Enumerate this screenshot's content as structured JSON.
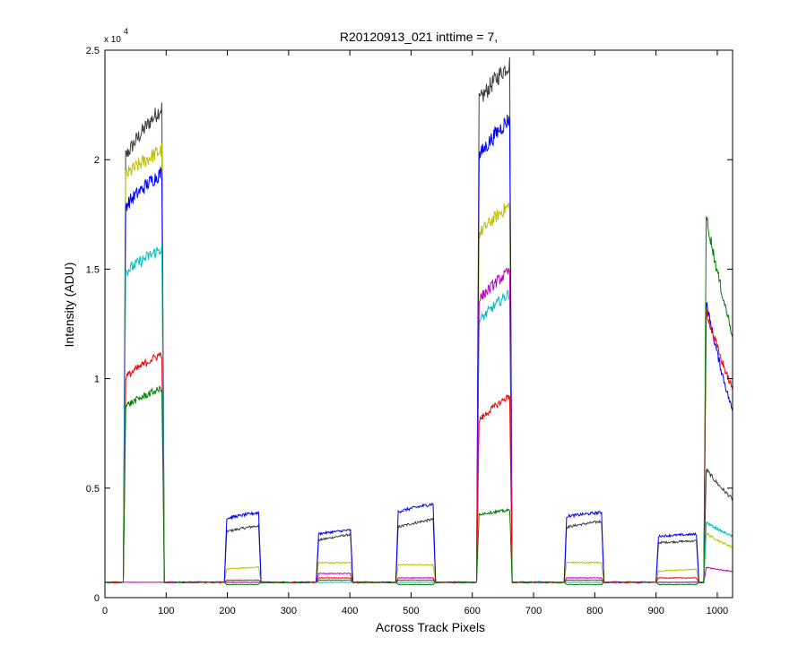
{
  "chart_data": {
    "type": "line",
    "title": "R20120913_021 inttime = 7,",
    "xlabel": "Across Track Pixels",
    "ylabel": "Intensity (ADU)",
    "y_exponent_label": "x 10",
    "y_exponent": "4",
    "xlim": [
      0,
      1025
    ],
    "ylim": [
      0,
      25000
    ],
    "x_ticks": [
      0,
      100,
      200,
      300,
      400,
      500,
      600,
      700,
      800,
      900,
      1000
    ],
    "x_tick_labels": [
      "0",
      "100",
      "200",
      "300",
      "400",
      "500",
      "600",
      "700",
      "800",
      "900",
      "1000"
    ],
    "y_ticks": [
      0,
      5000,
      10000,
      15000,
      20000,
      25000
    ],
    "y_tick_labels": [
      "0",
      "0.5",
      "1",
      "1.5",
      "2",
      "2.5"
    ],
    "grid": false,
    "legend": "none",
    "baseline": 700,
    "segments": [
      {
        "x0": 30,
        "x1": 97
      },
      {
        "x0": 195,
        "x1": 255
      },
      {
        "x0": 345,
        "x1": 405
      },
      {
        "x0": 475,
        "x1": 540
      },
      {
        "x0": 607,
        "x1": 665
      },
      {
        "x0": 750,
        "x1": 815
      },
      {
        "x0": 900,
        "x1": 970
      },
      {
        "x0": 978,
        "x1": 1025
      }
    ],
    "series": [
      {
        "color": "#404040",
        "levels": [
          [
            20000,
            22500
          ],
          [
            3000,
            3300
          ],
          [
            2600,
            2900
          ],
          [
            3200,
            3600
          ],
          [
            22500,
            24500
          ],
          [
            3200,
            3500
          ],
          [
            2500,
            2600
          ],
          [
            6000,
            4500
          ]
        ]
      },
      {
        "color": "#bfbf00",
        "levels": [
          [
            19200,
            20500
          ],
          [
            1300,
            1400
          ],
          [
            1600,
            1600
          ],
          [
            1500,
            1500
          ],
          [
            16500,
            18000
          ],
          [
            1600,
            1600
          ],
          [
            1200,
            1300
          ],
          [
            3000,
            2300
          ]
        ]
      },
      {
        "color": "#0000ff",
        "levels": [
          [
            17800,
            19500
          ],
          [
            3600,
            3900
          ],
          [
            2900,
            3100
          ],
          [
            3900,
            4300
          ],
          [
            20000,
            22000
          ],
          [
            3700,
            3900
          ],
          [
            2800,
            2900
          ],
          [
            14000,
            8500
          ]
        ]
      },
      {
        "color": "#00bfbf",
        "levels": [
          [
            14800,
            16000
          ],
          [
            700,
            700
          ],
          [
            700,
            700
          ],
          [
            700,
            700
          ],
          [
            12500,
            14000
          ],
          [
            700,
            700
          ],
          [
            700,
            700
          ],
          [
            3500,
            2800
          ]
        ]
      },
      {
        "color": "#bf00bf",
        "levels": [
          [
            700,
            700
          ],
          [
            700,
            700
          ],
          [
            1100,
            1100
          ],
          [
            900,
            900
          ],
          [
            13500,
            15000
          ],
          [
            900,
            900
          ],
          [
            700,
            700
          ],
          [
            1400,
            1200
          ]
        ]
      },
      {
        "color": "#ff0000",
        "levels": [
          [
            10000,
            11200
          ],
          [
            800,
            800
          ],
          [
            900,
            900
          ],
          [
            800,
            800
          ],
          [
            8000,
            9300
          ],
          [
            800,
            800
          ],
          [
            900,
            900
          ],
          [
            13500,
            9500
          ]
        ]
      },
      {
        "color": "#008000",
        "levels": [
          [
            8700,
            9600
          ],
          [
            600,
            600
          ],
          [
            800,
            800
          ],
          [
            600,
            600
          ],
          [
            3800,
            4000
          ],
          [
            600,
            600
          ],
          [
            600,
            600
          ],
          [
            18000,
            12000
          ]
        ]
      }
    ]
  }
}
